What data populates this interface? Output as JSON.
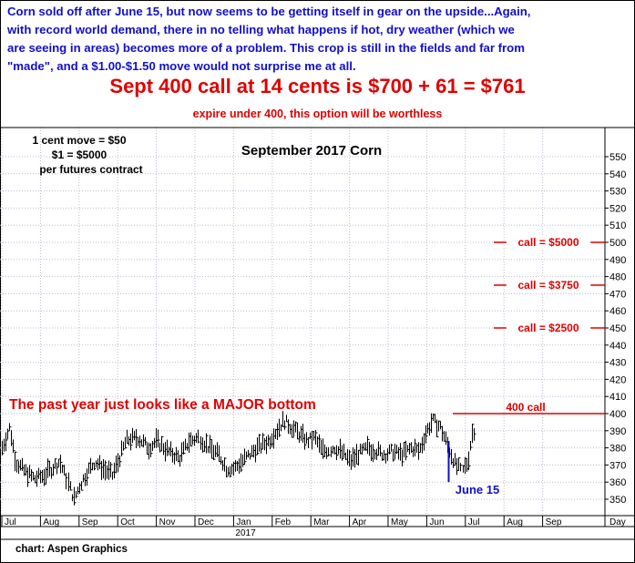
{
  "commentary": "Corn sold off after June 15, but now seems to be getting itself in gear on the upside...Again,\nwith record world demand, there in no telling what happens if hot, dry weather (which we\nare seeing in areas) becomes more of a problem. This crop is still in the fields and far from\n\"made\", and a $1.00-$1.50 move would not surprise me at all.",
  "headline": "Sept 400 call at 14 cents is $700 + 61 = $761",
  "subheadline": "expire under 400, this option will be worthless",
  "footer": "chart: Aspen Graphics",
  "colors": {
    "commentary": "#1010c8",
    "headline": "#e00000",
    "bars": "#000000",
    "grid": "#b9bbd0",
    "june15_marker": "#1010c8"
  },
  "chart_data": {
    "type": "bar",
    "subtype": "ohlc-price-bars",
    "title": "September 2017 Corn",
    "y_axis_position": "right",
    "ylim": [
      340,
      555
    ],
    "yticks": [
      350,
      360,
      370,
      380,
      390,
      400,
      410,
      420,
      430,
      440,
      450,
      460,
      470,
      480,
      490,
      500,
      510,
      520,
      530,
      540,
      550
    ],
    "grid": true,
    "x_labels": [
      {
        "label": "Jul",
        "month": 0
      },
      {
        "label": "Aug",
        "month": 1
      },
      {
        "label": "Sep",
        "month": 2
      },
      {
        "label": "Oct",
        "month": 3
      },
      {
        "label": "Nov",
        "month": 4
      },
      {
        "label": "Dec",
        "month": 5
      },
      {
        "label": "Jan",
        "month": 6
      },
      {
        "label": "Feb",
        "month": 7
      },
      {
        "label": "Mar",
        "month": 8
      },
      {
        "label": "Apr",
        "month": 9
      },
      {
        "label": "May",
        "month": 10
      },
      {
        "label": "Jun",
        "month": 11
      },
      {
        "label": "Jul",
        "month": 12
      },
      {
        "label": "Aug",
        "month": 13
      },
      {
        "label": "Sep",
        "month": 14
      }
    ],
    "year_label": "2017",
    "x_unit_label": "Day",
    "price_path": [
      [
        0,
        380
      ],
      [
        0.2,
        392
      ],
      [
        0.35,
        372
      ],
      [
        0.6,
        366
      ],
      [
        0.85,
        362
      ],
      [
        1.1,
        364
      ],
      [
        1.3,
        368
      ],
      [
        1.5,
        372
      ],
      [
        1.7,
        360
      ],
      [
        1.85,
        350
      ],
      [
        2.0,
        358
      ],
      [
        2.2,
        366
      ],
      [
        2.4,
        372
      ],
      [
        2.6,
        368
      ],
      [
        2.85,
        364
      ],
      [
        3.0,
        372
      ],
      [
        3.2,
        384
      ],
      [
        3.5,
        386
      ],
      [
        3.8,
        380
      ],
      [
        4.0,
        384
      ],
      [
        4.3,
        378
      ],
      [
        4.6,
        374
      ],
      [
        4.85,
        384
      ],
      [
        5.1,
        386
      ],
      [
        5.35,
        380
      ],
      [
        5.6,
        376
      ],
      [
        5.8,
        368
      ],
      [
        6.0,
        368
      ],
      [
        6.3,
        374
      ],
      [
        6.6,
        380
      ],
      [
        6.9,
        384
      ],
      [
        7.1,
        390
      ],
      [
        7.3,
        396
      ],
      [
        7.5,
        392
      ],
      [
        7.7,
        388
      ],
      [
        7.9,
        384
      ],
      [
        8.1,
        386
      ],
      [
        8.3,
        378
      ],
      [
        8.6,
        380
      ],
      [
        8.85,
        376
      ],
      [
        9.0,
        372
      ],
      [
        9.2,
        376
      ],
      [
        9.45,
        380
      ],
      [
        9.7,
        378
      ],
      [
        9.9,
        376
      ],
      [
        10.1,
        378
      ],
      [
        10.35,
        376
      ],
      [
        10.6,
        380
      ],
      [
        10.8,
        378
      ],
      [
        11.0,
        390
      ],
      [
        11.15,
        396
      ],
      [
        11.35,
        392
      ],
      [
        11.5,
        384
      ],
      [
        11.6,
        378
      ],
      [
        11.75,
        370
      ],
      [
        11.9,
        366
      ],
      [
        12.05,
        372
      ],
      [
        12.15,
        388
      ],
      [
        12.25,
        392
      ]
    ],
    "price_range_half": 4,
    "annotations": [
      {
        "text": "1 cent move = $50",
        "position": "top-left"
      },
      {
        "text": "$1 = $5000",
        "position": "top-left"
      },
      {
        "text": "per futures contract",
        "position": "top-left"
      },
      {
        "text": "The past year just looks like a MAJOR bottom",
        "price": 402,
        "color": "#e00000"
      },
      {
        "text": "June 15",
        "color": "#1010c8"
      }
    ],
    "reference_lines": [
      {
        "label": "400 call",
        "price": 400,
        "color": "#e00000"
      },
      {
        "label": "call = $2500",
        "price": 450,
        "color": "#e00000"
      },
      {
        "label": "call = $3750",
        "price": 475,
        "color": "#e00000"
      },
      {
        "label": "call = $5000",
        "price": 500,
        "color": "#e00000"
      }
    ],
    "june15_marker": {
      "month": 11.55,
      "from_price": 360,
      "to_price": 384
    }
  }
}
